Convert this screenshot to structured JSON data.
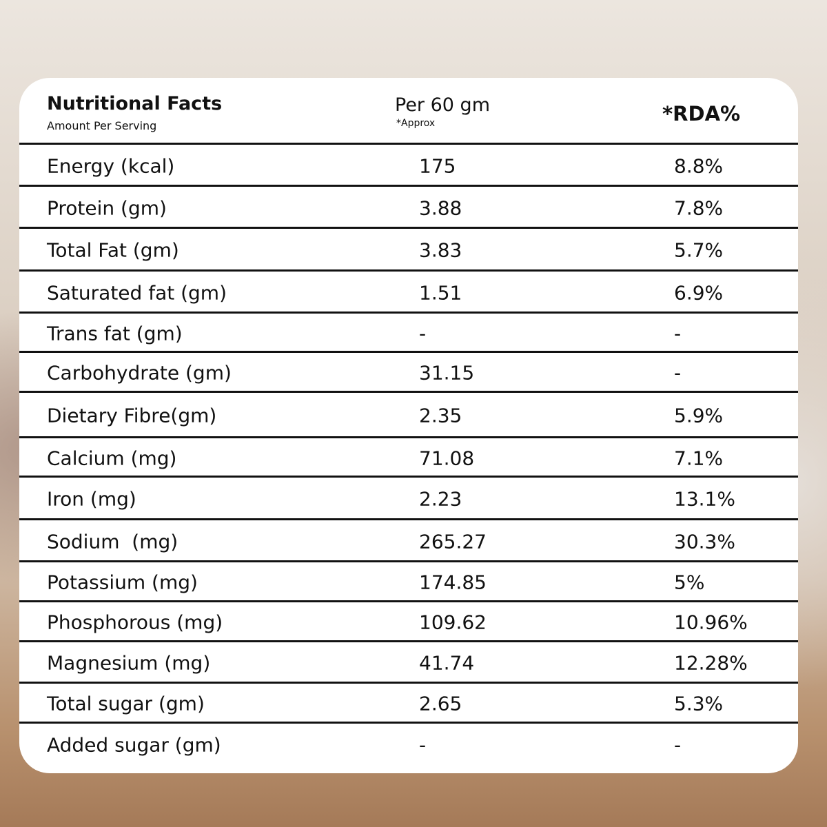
{
  "header": {
    "title": "Nutritional Facts",
    "subtitle": "Amount Per Serving",
    "column_1": "Per 60 gm",
    "column_1_note": "*Approx",
    "column_2": "*RDA%"
  },
  "table": {
    "rows": [
      [
        "Energy (kcal)",
        "175",
        "8.8%"
      ],
      [
        "Protein (gm)",
        "3.88",
        "7.8%"
      ],
      [
        "Total Fat (gm)",
        "3.83",
        "5.7%"
      ],
      [
        "Saturated fat (gm)",
        "1.51",
        "6.9%"
      ],
      [
        "Trans fat (gm)",
        "-",
        "-"
      ],
      [
        "Carbohydrate (gm)",
        "31.15",
        "-"
      ],
      [
        "Dietary Fibre(gm)",
        "2.35",
        "5.9%"
      ],
      [
        "Calcium (mg)",
        "71.08",
        "7.1%"
      ],
      [
        "Iron (mg)",
        "2.23",
        "13.1%"
      ],
      [
        "Sodium  (mg)",
        "265.27",
        "30.3%"
      ],
      [
        "Potassium (mg)",
        "174.85",
        "5%"
      ],
      [
        "Phosphorous (mg)",
        "109.62",
        "10.96%"
      ],
      [
        "Magnesium (mg)",
        "41.74",
        "12.28%"
      ],
      [
        "Total sugar (gm)",
        "2.65",
        "5.3%"
      ],
      [
        "Added sugar (gm)",
        "-",
        "-"
      ]
    ]
  }
}
